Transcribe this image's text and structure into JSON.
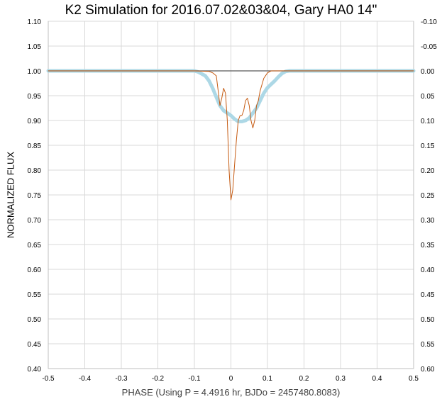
{
  "chart_data": {
    "type": "line",
    "title": "K2 Simulation for 2016.07.02&03&04, Gary HA0 14\"",
    "xlabel": "PHASE (Using P = 4.4916 hr, BJDo = 2457480.8083)",
    "ylabel": "NORMALIZED FLUX",
    "xlim": [
      -0.5,
      0.5
    ],
    "ylim": [
      0.4,
      1.1
    ],
    "y2lim": [
      0.6,
      -0.1
    ],
    "x_ticks": [
      "-0.5",
      "-0.4",
      "-0.3",
      "-0.2",
      "-0.1",
      "0",
      "0.1",
      "0.2",
      "0.3",
      "0.4",
      "0.5"
    ],
    "x_tick_values": [
      -0.5,
      -0.4,
      -0.3,
      -0.2,
      -0.1,
      0,
      0.1,
      0.2,
      0.3,
      0.4,
      0.5
    ],
    "y_ticks": [
      "0.40",
      "0.45",
      "0.50",
      "0.55",
      "0.60",
      "0.65",
      "0.70",
      "0.75",
      "0.80",
      "0.85",
      "0.90",
      "0.95",
      "1.00",
      "1.05",
      "1.10"
    ],
    "y_tick_values": [
      0.4,
      0.45,
      0.5,
      0.55,
      0.6,
      0.65,
      0.7,
      0.75,
      0.8,
      0.85,
      0.9,
      0.95,
      1.0,
      1.05,
      1.1
    ],
    "y2_ticks": [
      "0.60",
      "0.55",
      "0.50",
      "0.45",
      "0.40",
      "0.35",
      "0.30",
      "0.25",
      "0.20",
      "0.15",
      "0.10",
      "0.05",
      "0.00",
      "-0.05",
      "-0.10"
    ],
    "grid": true,
    "series": [
      {
        "color": "#add8e6",
        "style": "thick",
        "x": [
          -0.5,
          -0.1,
          -0.09,
          -0.08,
          -0.07,
          -0.06,
          -0.05,
          -0.04,
          -0.03,
          -0.02,
          -0.01,
          0.0,
          0.01,
          0.02,
          0.03,
          0.04,
          0.05,
          0.06,
          0.07,
          0.08,
          0.09,
          0.1,
          0.11,
          0.12,
          0.13,
          0.14,
          0.15,
          0.16,
          0.2,
          0.5
        ],
        "y": [
          1.0,
          1.0,
          0.998,
          0.994,
          0.99,
          0.98,
          0.965,
          0.947,
          0.93,
          0.92,
          0.915,
          0.91,
          0.903,
          0.898,
          0.898,
          0.9,
          0.905,
          0.915,
          0.925,
          0.94,
          0.955,
          0.966,
          0.973,
          0.98,
          0.988,
          0.995,
          0.999,
          1.0,
          1.0,
          1.0
        ]
      },
      {
        "color": "#c55a11",
        "style": "thin",
        "x": [
          -0.5,
          -0.1,
          -0.06,
          -0.05,
          -0.04,
          -0.035,
          -0.03,
          -0.025,
          -0.02,
          -0.015,
          -0.01,
          -0.005,
          0.0,
          0.005,
          0.01,
          0.015,
          0.02,
          0.025,
          0.03,
          0.035,
          0.04,
          0.045,
          0.05,
          0.055,
          0.06,
          0.065,
          0.07,
          0.075,
          0.08,
          0.09,
          0.1,
          0.11,
          0.12,
          0.15,
          0.5
        ],
        "y": [
          1.0,
          1.0,
          0.999,
          0.996,
          0.99,
          0.96,
          0.93,
          0.945,
          0.965,
          0.955,
          0.9,
          0.8,
          0.74,
          0.76,
          0.81,
          0.86,
          0.9,
          0.91,
          0.91,
          0.92,
          0.94,
          0.945,
          0.93,
          0.9,
          0.885,
          0.9,
          0.93,
          0.94,
          0.96,
          0.985,
          0.996,
          1.0,
          1.0,
          1.0,
          1.0
        ]
      },
      {
        "color": "#595959",
        "style": "baseline",
        "x": [
          -0.5,
          0.5
        ],
        "y": [
          1.0,
          1.0
        ]
      }
    ]
  }
}
